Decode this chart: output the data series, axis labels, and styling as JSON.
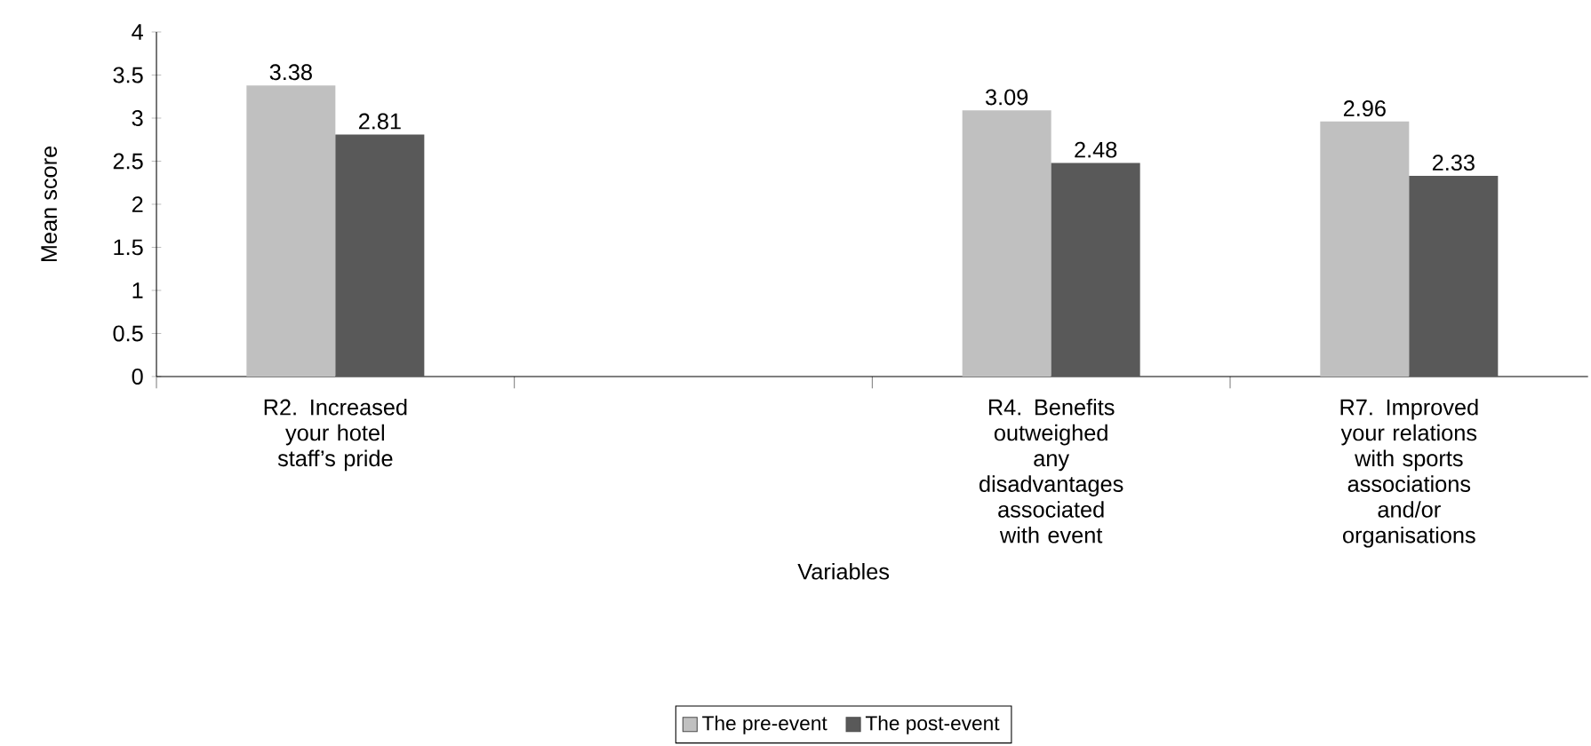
{
  "chart_data": {
    "type": "bar",
    "xlabel": "Variables",
    "ylabel": "Mean score",
    "categories": [
      "R2. Increased your hotel staff’s pride",
      null,
      "R4. Benefits outweighed any disadvantages associated with event",
      "R7. Improved your relations with sports associations and/or organisations"
    ],
    "series": [
      {
        "name": "The pre-event",
        "color": "#c0c0c0",
        "values": [
          3.38,
          null,
          3.09,
          2.96
        ]
      },
      {
        "name": "The post-event",
        "color": "#595959",
        "values": [
          2.81,
          null,
          2.48,
          2.33
        ]
      }
    ],
    "ylim": [
      0,
      4
    ],
    "yticks": [
      0,
      0.5,
      1,
      1.5,
      2,
      2.5,
      3,
      3.5,
      4
    ],
    "data_labels": true,
    "legend": "bottom",
    "marker": "square",
    "grid": false
  }
}
